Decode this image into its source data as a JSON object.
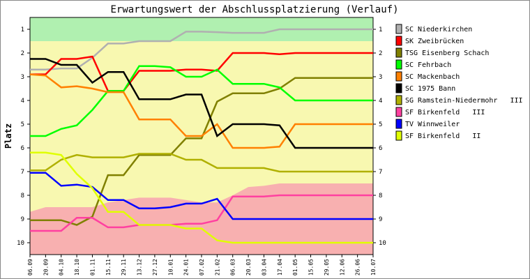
{
  "chart_data": {
    "type": "line",
    "title": "Erwartungswert der Abschlussplatzierung (Verlauf)",
    "ylabel": "Platz",
    "xlabel": "",
    "ylim": [
      1,
      10
    ],
    "y_inverted": true,
    "yticks": [
      1,
      2,
      3,
      4,
      5,
      6,
      7,
      8,
      9,
      10
    ],
    "x": [
      "06.09",
      "20.09",
      "04.10",
      "18.10",
      "01.11",
      "15.11",
      "29.11",
      "13.12",
      "27.12",
      "10.01",
      "24.01",
      "07.02",
      "21.02",
      "06.03",
      "20.03",
      "03.04",
      "17.04",
      "01.05",
      "15.05",
      "29.05",
      "12.06",
      "26.06",
      "10.07"
    ],
    "zones": [
      {
        "name": "promotion",
        "color": "#b0f0b0",
        "bottom": [
          1.5,
          1.5,
          1.5,
          1.5,
          1.5,
          1.5,
          1.5,
          1.5,
          1.5,
          1.5,
          1.5,
          1.5,
          1.5,
          1.5,
          1.5,
          1.5,
          1.5,
          1.5,
          1.5,
          1.5,
          1.5,
          1.5,
          1.5
        ]
      },
      {
        "name": "relegation",
        "color": "#f8b0b0",
        "top": [
          8.7,
          8.5,
          8.5,
          8.5,
          8.5,
          8.3,
          8.2,
          8.1,
          8.1,
          8.1,
          8.2,
          8.3,
          8.3,
          8.0,
          7.65,
          7.6,
          7.5,
          7.5,
          7.5,
          7.5,
          7.5,
          7.5,
          7.5
        ]
      }
    ],
    "middle_color": "#f8f8b0",
    "grid": false,
    "legend_position": "right",
    "series": [
      {
        "name": "SC Niederkirchen",
        "color": "#b0b0b0",
        "values": [
          2.7,
          2.7,
          2.65,
          2.65,
          2.2,
          1.6,
          1.6,
          1.5,
          1.5,
          1.5,
          1.1,
          1.1,
          1.12,
          1.15,
          1.15,
          1.15,
          1.0,
          1.0,
          1.0,
          1.0,
          1.0,
          1.0,
          1.0
        ]
      },
      {
        "name": "SK Zweibrücken",
        "color": "#ff0000",
        "values": [
          2.9,
          2.9,
          2.25,
          2.25,
          2.15,
          3.6,
          3.6,
          2.75,
          2.75,
          2.75,
          2.7,
          2.7,
          2.75,
          2.0,
          2.0,
          2.0,
          2.05,
          2.0,
          2.0,
          2.0,
          2.0,
          2.0,
          2.0
        ]
      },
      {
        "name": "TSG Eisenberg Schach",
        "color": "#808000",
        "values": [
          9.05,
          9.05,
          9.05,
          9.25,
          8.9,
          7.15,
          7.15,
          6.3,
          6.3,
          6.3,
          5.6,
          5.6,
          4.05,
          3.7,
          3.7,
          3.7,
          3.5,
          3.05,
          3.05,
          3.05,
          3.05,
          3.05,
          3.05
        ]
      },
      {
        "name": "SC Fehrbach",
        "color": "#00ff00",
        "values": [
          5.5,
          5.5,
          5.2,
          5.05,
          4.4,
          3.6,
          3.6,
          2.55,
          2.55,
          2.6,
          3.0,
          3.0,
          2.7,
          3.3,
          3.3,
          3.3,
          3.45,
          4.0,
          4.0,
          4.0,
          4.0,
          4.0,
          4.0
        ]
      },
      {
        "name": "SC Mackenbach",
        "color": "#ff8000",
        "values": [
          2.9,
          2.95,
          3.45,
          3.4,
          3.5,
          3.65,
          3.65,
          4.8,
          4.8,
          4.8,
          5.5,
          5.5,
          5.0,
          6.0,
          6.0,
          6.0,
          5.95,
          5.0,
          5.0,
          5.0,
          5.0,
          5.0,
          5.0
        ]
      },
      {
        "name": "SC 1975 Bann",
        "color": "#000000",
        "values": [
          2.25,
          2.25,
          2.5,
          2.5,
          3.25,
          2.8,
          2.8,
          3.95,
          3.95,
          3.95,
          3.75,
          3.75,
          5.5,
          5.0,
          5.0,
          5.0,
          5.05,
          6.0,
          6.0,
          6.0,
          6.0,
          6.0,
          6.0
        ]
      },
      {
        "name": "SG Ramstein-Niedermohr   III",
        "color": "#b0b000",
        "values": [
          6.95,
          6.95,
          6.5,
          6.3,
          6.4,
          6.4,
          6.4,
          6.25,
          6.25,
          6.25,
          6.5,
          6.5,
          6.85,
          6.85,
          6.85,
          6.85,
          7.0,
          7.0,
          7.0,
          7.0,
          7.0,
          7.0,
          7.0
        ]
      },
      {
        "name": "SF Birkenfeld   III",
        "color": "#ff40a0",
        "values": [
          9.5,
          9.5,
          9.5,
          8.95,
          8.95,
          9.35,
          9.35,
          9.25,
          9.25,
          9.25,
          9.2,
          9.2,
          9.05,
          8.05,
          8.05,
          8.05,
          8.0,
          8.0,
          8.0,
          8.0,
          8.0,
          8.0,
          8.0
        ]
      },
      {
        "name": "TV Winnweiler",
        "color": "#0000ff",
        "values": [
          7.05,
          7.05,
          7.6,
          7.55,
          7.65,
          8.2,
          8.2,
          8.55,
          8.55,
          8.5,
          8.35,
          8.35,
          8.15,
          9.0,
          9.0,
          9.0,
          9.0,
          9.0,
          9.0,
          9.0,
          9.0,
          9.0,
          9.0
        ]
      },
      {
        "name": "SF Birkenfeld   II",
        "color": "#e0ff00",
        "values": [
          6.2,
          6.2,
          6.3,
          7.1,
          7.7,
          8.7,
          8.7,
          9.25,
          9.25,
          9.25,
          9.4,
          9.4,
          9.9,
          10.0,
          10.0,
          10.0,
          10.0,
          10.0,
          10.0,
          10.0,
          10.0,
          10.0,
          10.0
        ]
      }
    ]
  }
}
